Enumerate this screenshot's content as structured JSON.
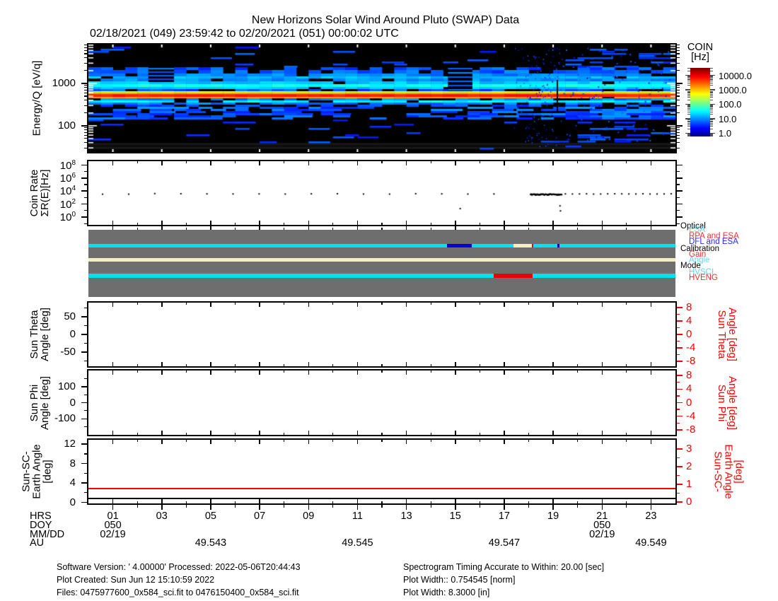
{
  "title": "New Horizons Solar Wind Around Pluto (SWAP) Data",
  "subtitle": "02/18/2021 (049) 23:59:42 to 02/20/2021 (051) 00:00:02 UTC",
  "time_axis": {
    "min": 0,
    "max": 24,
    "majors": [
      {
        "v": 1,
        "label": "01"
      },
      {
        "v": 3,
        "label": "03"
      },
      {
        "v": 5,
        "label": "05"
      },
      {
        "v": 7,
        "label": "07"
      },
      {
        "v": 9,
        "label": "09"
      },
      {
        "v": 11,
        "label": "11"
      },
      {
        "v": 13,
        "label": "13"
      },
      {
        "v": 15,
        "label": "15"
      },
      {
        "v": 17,
        "label": "17"
      },
      {
        "v": 19,
        "label": "19"
      },
      {
        "v": 21,
        "label": "21"
      },
      {
        "v": 23,
        "label": "23"
      }
    ],
    "minors": [
      2,
      4,
      6,
      8,
      10,
      12,
      14,
      16,
      18,
      20,
      22
    ]
  },
  "chart_data": [
    {
      "id": "spectrogram",
      "type": "heatmap",
      "ylabel": "Energy/Q [eV/q]",
      "yaxis": {
        "log": true,
        "min": 24,
        "max": 8250,
        "majors": [
          {
            "v": 100,
            "label": "100"
          },
          {
            "v": 1000,
            "label": "1000"
          }
        ],
        "minors": [
          30,
          40,
          50,
          60,
          70,
          80,
          90,
          200,
          300,
          400,
          500,
          600,
          700,
          800,
          900,
          2000,
          3000,
          4000,
          5000,
          6000,
          7000,
          8000
        ]
      },
      "colorbar": {
        "title": [
          "COIN",
          "[Hz]"
        ],
        "log_min": -0.23,
        "log_max": 4.52,
        "labels": [
          {
            "v": 4,
            "text": "10000.0"
          },
          {
            "v": 3,
            "text": "1000.0"
          },
          {
            "v": 2,
            "text": "100.0"
          },
          {
            "v": 1,
            "text": "10.0"
          },
          {
            "v": 0,
            "text": "1.0"
          }
        ]
      },
      "description": "Solar wind proton beam near 520 eV/q at ~10^3.8 Hz persisting all day; cyan band near 900 eV/q; patchy blue background; noise burst 17.8-19.2 UT",
      "bands": [
        {
          "y0": 32,
          "y1": 36,
          "base": 0.75,
          "vary": 0.5,
          "pBlack": 0.3
        },
        {
          "y0": 36,
          "y1": 41,
          "base": 0.8,
          "vary": 0.5,
          "pBlack": 0.22
        },
        {
          "y0": 41,
          "y1": 45,
          "base": 1.0,
          "vary": 0.4,
          "pBlack": 0.12
        },
        {
          "y0": 45,
          "y1": 48,
          "base": 1.2,
          "vary": 0.35,
          "pBlack": 0.08
        },
        {
          "y0": 48,
          "y1": 52,
          "base": 1.05,
          "vary": 0.35,
          "pBlack": 0.1
        },
        {
          "y0": 52,
          "y1": 56,
          "base": 1.3,
          "vary": 0.3,
          "pBlack": 0.05
        },
        {
          "y0": 56,
          "y1": 60,
          "base": 1.6,
          "vary": 0.25,
          "pBlack": 0.02
        },
        {
          "y0": 60,
          "y1": 63,
          "base": 1.3,
          "vary": 0.3,
          "pBlack": 0.1
        },
        {
          "y0": 63,
          "y1": 66,
          "base": 0.8,
          "vary": 0.5,
          "pBlack": 0.3
        },
        {
          "y0": 66,
          "y1": 68,
          "base": 2.55,
          "vary": 0.3,
          "pBlack": 0.02
        },
        {
          "y0": 68,
          "y1": 70,
          "base": 3.15,
          "vary": 0.15,
          "pBlack": 0
        },
        {
          "y0": 70,
          "y1": 74,
          "base": 3.8,
          "vary": 0.18,
          "pBlack": 0
        },
        {
          "y0": 74,
          "y1": 76,
          "base": 3.2,
          "vary": 0.15,
          "pBlack": 0.02
        },
        {
          "y0": 76,
          "y1": 79,
          "base": 1.0,
          "vary": 0.5,
          "pBlack": 0.3
        },
        {
          "y0": 79,
          "y1": 82,
          "base": 1.5,
          "vary": 0.3,
          "pBlack": 0.08
        },
        {
          "y0": 82,
          "y1": 85,
          "base": 0.9,
          "vary": 0.4,
          "pBlack": 0.2
        },
        {
          "y0": 85,
          "y1": 88,
          "base": 0.7,
          "vary": 0.4,
          "pBlack": 0.35
        }
      ],
      "features": {
        "seed": 42,
        "patch_region": {
          "y0": 88,
          "y1": 106,
          "p": 0.38
        },
        "sparse_regions": [
          {
            "y0": 3,
            "y1": 32,
            "p": 0.05
          },
          {
            "y0": 106,
            "y1": 137,
            "p": 0.05
          },
          {
            "y0": 137,
            "y1": 150,
            "p": 0.015
          }
        ],
        "gray_rows": [
          {
            "y": 139,
            "h": 4
          },
          {
            "y": 144,
            "h": 4
          }
        ],
        "gray_row_color": "#161616",
        "striped_gaps": [
          {
            "t0": 14.7,
            "t1": 15.7,
            "y0": 32,
            "y1": 66,
            "step": 6
          },
          {
            "t0": 2.45,
            "t1": 3.5,
            "y0": 32,
            "y1": 53,
            "step": 5
          }
        ],
        "speckle": {
          "t0": 17.4,
          "t1": 19.35,
          "dense_t0": 17.85,
          "dense_t1": 19.2
        },
        "black_column_t": 19.17,
        "noisy_after_t": 19.35
      }
    },
    {
      "id": "coinrate",
      "type": "scatter",
      "ylabel": [
        "Coin Rate",
        "ΣR(E)[Hz]"
      ],
      "yaxis": {
        "min": -1.2,
        "max": 8.6,
        "majors": [
          {
            "v": 8,
            "label": "10^8"
          },
          {
            "v": 6,
            "label": "10^6"
          },
          {
            "v": 4,
            "label": "10^4"
          },
          {
            "v": 2,
            "label": "10^2"
          },
          {
            "v": 0,
            "label": "10^0"
          }
        ],
        "minors": [
          7,
          5,
          3,
          1,
          -1
        ]
      },
      "series": [
        {
          "kind": "cadence",
          "t0": 0.58,
          "t1": 16.65,
          "step_min": 64,
          "v": 3.57,
          "jitter": 0.05
        },
        {
          "kind": "point",
          "t": 15.2,
          "v": 1.3
        },
        {
          "kind": "dense",
          "t0": 18.08,
          "t1": 19.35,
          "step_min": 1.1,
          "v": 3.46,
          "jitter": 0.07
        },
        {
          "kind": "cadence",
          "t0": 19.5,
          "t1": 23.92,
          "step_min": 17.3,
          "v": 3.56,
          "jitter": 0.03
        },
        {
          "kind": "point",
          "t": 19.28,
          "v": 1.72
        },
        {
          "kind": "point",
          "t": 19.3,
          "v": 0.95
        }
      ]
    },
    {
      "id": "status",
      "type": "timeline",
      "bg": "#6E6E6E",
      "colors": {
        "cyan": "#00E0F0",
        "blue": "#0000DC",
        "cream": "#F2EFC4",
        "red": "#EB0000"
      },
      "legend": [
        {
          "text": "Optical",
          "color": "#000000",
          "indent": 0,
          "y": 315
        },
        {
          "text": "ESA",
          "color": "#5CD6F6",
          "indent": 1,
          "y": 320
        },
        {
          "text": "RPA and ESA",
          "color": "#FF2A2A",
          "indent": 1,
          "y": 329
        },
        {
          "text": "DFL and ESA",
          "color": "#2A2AFF",
          "indent": 1,
          "y": 337
        },
        {
          "text": "Calibration",
          "color": "#000000",
          "indent": 0,
          "y": 347
        },
        {
          "text": "Gain",
          "color": "#FF2A2A",
          "indent": 1,
          "y": 355
        },
        {
          "text": "Angle",
          "color": "#5CD6F6",
          "indent": 1,
          "y": 363
        },
        {
          "text": "Mode",
          "color": "#000000",
          "indent": 0,
          "y": 371
        },
        {
          "text": "HVSCI",
          "color": "#5CD6F6",
          "indent": 1,
          "y": 380
        },
        {
          "text": "HVENG",
          "color": "#FF2A2A",
          "indent": 1,
          "y": 388
        }
      ],
      "rows": [
        {
          "name": "optical",
          "y": 19.5,
          "h": 5,
          "segments": [
            {
              "t0": 0,
              "t1": 14.65,
              "c": "cyan"
            },
            {
              "t0": 14.65,
              "t1": 15.67,
              "c": "blue"
            },
            {
              "t0": 15.67,
              "t1": 17.37,
              "c": "cyan"
            },
            {
              "t0": 17.37,
              "t1": 18.12,
              "c": "cream"
            },
            {
              "t0": 18.12,
              "t1": 18.2,
              "c": "red"
            },
            {
              "t0": 18.2,
              "t1": 19.17,
              "c": "cyan"
            },
            {
              "t0": 19.17,
              "t1": 19.25,
              "c": "blue"
            },
            {
              "t0": 19.25,
              "t1": 24,
              "c": "cyan"
            }
          ]
        },
        {
          "name": "calibration",
          "y": 39.5,
          "h": 5.5,
          "segments": [
            {
              "t0": 0,
              "t1": 24,
              "c": "cream"
            }
          ]
        },
        {
          "name": "mode",
          "y": 62,
          "h": 5.5,
          "segments": [
            {
              "t0": 0,
              "t1": 16.58,
              "c": "cyan"
            },
            {
              "t0": 16.58,
              "t1": 18.15,
              "c": "red"
            },
            {
              "t0": 18.15,
              "t1": 24,
              "c": "cyan"
            }
          ]
        }
      ]
    },
    {
      "id": "sun_theta",
      "type": "line",
      "ylabel": [
        "Sun Theta",
        "Angle [deg]"
      ],
      "yaxis": {
        "min": -90,
        "max": 90,
        "majors": [
          {
            "v": 50,
            "label": "50"
          },
          {
            "v": 0,
            "label": "0"
          },
          {
            "v": -50,
            "label": "-50"
          }
        ],
        "minors": [
          75,
          25,
          -25,
          -75
        ]
      },
      "right_axis": {
        "color": "#FF0000",
        "label": [
          "Sun Theta",
          "Angle [deg]"
        ],
        "min": -9.5,
        "max": 9.5,
        "majors": [
          {
            "v": 8,
            "label": "8"
          },
          {
            "v": 4,
            "label": "4"
          },
          {
            "v": 0,
            "label": "0"
          },
          {
            "v": -4,
            "label": "-4"
          },
          {
            "v": -8,
            "label": "-8"
          }
        ],
        "minors": [
          6,
          2,
          -2,
          -6
        ]
      },
      "series": []
    },
    {
      "id": "sun_phi",
      "type": "line",
      "ylabel": [
        "Sun Phi",
        "Angle [deg]"
      ],
      "yaxis": {
        "min": -200,
        "max": 200,
        "majors": [
          {
            "v": 100,
            "label": "100"
          },
          {
            "v": 0,
            "label": "0"
          },
          {
            "v": -100,
            "label": "-100"
          }
        ],
        "minors": [
          150,
          50,
          -50,
          -150
        ]
      },
      "right_axis": {
        "color": "#FF0000",
        "label": [
          "Sun Phi",
          "Angle [deg]"
        ],
        "min": -9.5,
        "max": 9.5,
        "majors": [
          {
            "v": 8,
            "label": "8"
          },
          {
            "v": 4,
            "label": "4"
          },
          {
            "v": 0,
            "label": "0"
          },
          {
            "v": -4,
            "label": "-4"
          },
          {
            "v": -8,
            "label": "-8"
          }
        ],
        "minors": [
          6,
          2,
          -2,
          -6
        ]
      },
      "series": []
    },
    {
      "id": "sun_sc_earth",
      "type": "line",
      "ylabel": [
        "Sun-SC-",
        "Earth Angle",
        "[deg]"
      ],
      "yaxis": {
        "min": -0.2,
        "max": 12.9,
        "majors": [
          {
            "v": 12,
            "label": "12"
          },
          {
            "v": 8,
            "label": "8"
          },
          {
            "v": 4,
            "label": "4"
          },
          {
            "v": 0,
            "label": "0"
          }
        ],
        "minors": [
          10,
          6,
          2
        ]
      },
      "right_axis": {
        "color": "#FF0000",
        "label": [
          "Sun-SC-",
          "Earth Angle",
          "[deg]"
        ],
        "min": -0.08,
        "max": 3.52,
        "majors": [
          {
            "v": 3,
            "label": "3"
          },
          {
            "v": 2,
            "label": "2"
          },
          {
            "v": 1,
            "label": "1"
          },
          {
            "v": 0,
            "label": "0"
          }
        ],
        "minors": [
          2.5,
          1.5,
          0.5
        ]
      },
      "hlines": [
        {
          "v": 2.9,
          "color": "#FF0000"
        },
        {
          "v": 0.75,
          "color": "#000000"
        }
      ]
    }
  ],
  "bottom_axis": {
    "rows": [
      {
        "label": "HRS",
        "use_time_majors": true,
        "items": []
      },
      {
        "label": "DOY",
        "items": [
          {
            "t": 1,
            "text": "050"
          },
          {
            "t": 21,
            "text": "050"
          }
        ]
      },
      {
        "label": "MM/DD",
        "items": [
          {
            "t": 1,
            "text": "02/19"
          },
          {
            "t": 21,
            "text": "02/19"
          }
        ]
      },
      {
        "label": "AU",
        "items": [
          {
            "t": 5,
            "text": "49.543"
          },
          {
            "t": 11,
            "text": "49.545"
          },
          {
            "t": 17,
            "text": "49.547"
          },
          {
            "t": 23,
            "text": "49.549"
          }
        ]
      }
    ]
  },
  "footer": {
    "left": [
      "Software Version:  ' 4.00000'  Processed: 2022-05-06T20:44:43",
      "Plot Created: Sun Jun 12 15:10:59 2022",
      "Files: 0475977600_0x584_sci.fit to 0476150400_0x584_sci.fit"
    ],
    "right": [
      "Spectrogram Timing Accurate to Within: 20.00 [sec]",
      "Plot Width:: 0.754545 [norm]",
      "Plot Width: 8.3000 [in]"
    ]
  }
}
